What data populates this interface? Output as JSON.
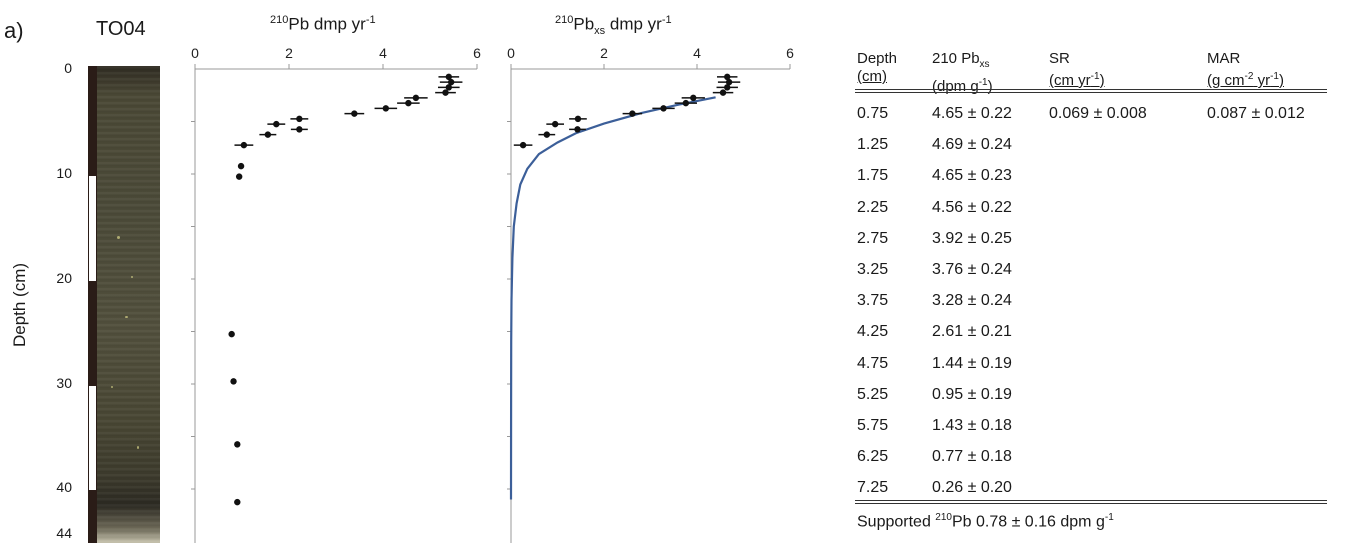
{
  "panel_label": "a)",
  "core": {
    "title": "TO04",
    "depth_axis_label": "Depth (cm)",
    "depth_ticks": [
      "0",
      "10",
      "20",
      "30",
      "40",
      "44"
    ]
  },
  "colors": {
    "fit_line": "#3c5f99",
    "points": "#111111",
    "axis": "#999999"
  },
  "chart_data": [
    {
      "type": "scatter",
      "title": "²¹⁰Pb dmp yr⁻¹",
      "x_ticks": [
        "0",
        "2",
        "4",
        "6"
      ],
      "xlim": [
        0,
        6
      ],
      "ylim": [
        0,
        44
      ],
      "y_axis_inverted": true,
      "points": [
        {
          "x": 5.4,
          "y": 0.75,
          "err": 0.22
        },
        {
          "x": 5.45,
          "y": 1.25,
          "err": 0.24
        },
        {
          "x": 5.4,
          "y": 1.75,
          "err": 0.23
        },
        {
          "x": 5.33,
          "y": 2.25,
          "err": 0.22
        },
        {
          "x": 4.7,
          "y": 2.75,
          "err": 0.25
        },
        {
          "x": 4.54,
          "y": 3.25,
          "err": 0.24
        },
        {
          "x": 4.06,
          "y": 3.75,
          "err": 0.24
        },
        {
          "x": 3.39,
          "y": 4.25,
          "err": 0.21
        },
        {
          "x": 2.22,
          "y": 4.75,
          "err": 0.19
        },
        {
          "x": 2.22,
          "y": 5.75,
          "err": 0.18
        },
        {
          "x": 1.73,
          "y": 5.25,
          "err": 0.19
        },
        {
          "x": 1.55,
          "y": 6.25,
          "err": 0.18
        },
        {
          "x": 1.04,
          "y": 7.25,
          "err": 0.2
        },
        {
          "x": 0.98,
          "y": 9.25,
          "err": 0
        },
        {
          "x": 0.94,
          "y": 10.25,
          "err": 0
        },
        {
          "x": 0.78,
          "y": 25.25,
          "err": 0
        },
        {
          "x": 0.82,
          "y": 29.75,
          "err": 0
        },
        {
          "x": 0.9,
          "y": 35.75,
          "err": 0
        },
        {
          "x": 0.9,
          "y": 41.25,
          "err": 0
        }
      ]
    },
    {
      "type": "scatter",
      "title": "²¹⁰Pbxs dmp yr⁻¹",
      "x_ticks": [
        "0",
        "2",
        "4",
        "6"
      ],
      "xlim": [
        0,
        6
      ],
      "ylim": [
        0,
        44
      ],
      "y_axis_inverted": true,
      "points": [
        {
          "x": 4.65,
          "y": 0.75,
          "err": 0.22
        },
        {
          "x": 4.69,
          "y": 1.25,
          "err": 0.24
        },
        {
          "x": 4.65,
          "y": 1.75,
          "err": 0.23
        },
        {
          "x": 4.56,
          "y": 2.25,
          "err": 0.22
        },
        {
          "x": 3.92,
          "y": 2.75,
          "err": 0.25
        },
        {
          "x": 3.76,
          "y": 3.25,
          "err": 0.24
        },
        {
          "x": 3.28,
          "y": 3.75,
          "err": 0.24
        },
        {
          "x": 2.61,
          "y": 4.25,
          "err": 0.21
        },
        {
          "x": 1.44,
          "y": 4.75,
          "err": 0.19
        },
        {
          "x": 0.95,
          "y": 5.25,
          "err": 0.19
        },
        {
          "x": 1.43,
          "y": 5.75,
          "err": 0.18
        },
        {
          "x": 0.77,
          "y": 6.25,
          "err": 0.18
        },
        {
          "x": 0.26,
          "y": 7.25,
          "err": 0.2
        }
      ],
      "fit_line": {
        "x": [
          4.4,
          3.6,
          2.8,
          2.0,
          1.4,
          1.0,
          0.6,
          0.35,
          0.2,
          0.12,
          0.06,
          0.03,
          0.01,
          0.005,
          0.002,
          0.0005
        ],
        "y": [
          2.7,
          3.4,
          4.2,
          5.2,
          6.1,
          7.0,
          8.1,
          9.5,
          11.0,
          12.8,
          15.0,
          18.0,
          22.0,
          26.0,
          32.0,
          41.0
        ]
      }
    }
  ],
  "table": {
    "headers": [
      {
        "l1": "Depth",
        "l2": "(cm)"
      },
      {
        "l1": "210 Pb",
        "l1_sub": "xs",
        "l2": "(dpm g",
        "l2_sup": "-1",
        "l2_end": ")"
      },
      {
        "l1": "SR",
        "l2": "(cm yr",
        "l2_sup": "-1",
        "l2_end": ")"
      },
      {
        "l1": "MAR",
        "l2": "(g cm",
        "l2_sup": "-2",
        "l2_mid": " yr",
        "l2_sup2": "-1",
        "l2_end": ")"
      }
    ],
    "rows": [
      {
        "depth": "0.75",
        "pb": "4.65 ± 0.22",
        "sr": "0.069 ± 0.008",
        "mar": "0.087 ± 0.012"
      },
      {
        "depth": "1.25",
        "pb": "4.69 ± 0.24",
        "sr": "",
        "mar": ""
      },
      {
        "depth": "1.75",
        "pb": "4.65 ± 0.23",
        "sr": "",
        "mar": ""
      },
      {
        "depth": "2.25",
        "pb": "4.56 ± 0.22",
        "sr": "",
        "mar": ""
      },
      {
        "depth": "2.75",
        "pb": "3.92 ± 0.25",
        "sr": "",
        "mar": ""
      },
      {
        "depth": "3.25",
        "pb": "3.76 ± 0.24",
        "sr": "",
        "mar": ""
      },
      {
        "depth": "3.75",
        "pb": "3.28 ± 0.24",
        "sr": "",
        "mar": ""
      },
      {
        "depth": "4.25",
        "pb": "2.61 ± 0.21",
        "sr": "",
        "mar": ""
      },
      {
        "depth": "4.75",
        "pb": "1.44 ± 0.19",
        "sr": "",
        "mar": ""
      },
      {
        "depth": "5.25",
        "pb": "0.95 ± 0.19",
        "sr": "",
        "mar": ""
      },
      {
        "depth": "5.75",
        "pb": "1.43 ± 0.18",
        "sr": "",
        "mar": ""
      },
      {
        "depth": "6.25",
        "pb": "0.77 ± 0.18",
        "sr": "",
        "mar": ""
      },
      {
        "depth": "7.25",
        "pb": "0.26 ± 0.20",
        "sr": "",
        "mar": ""
      }
    ],
    "footnote": {
      "pre": "Supported ",
      "sup": "210",
      "post": "Pb 0.78  ± 0.16 dpm g",
      "sup2": "-1"
    }
  }
}
